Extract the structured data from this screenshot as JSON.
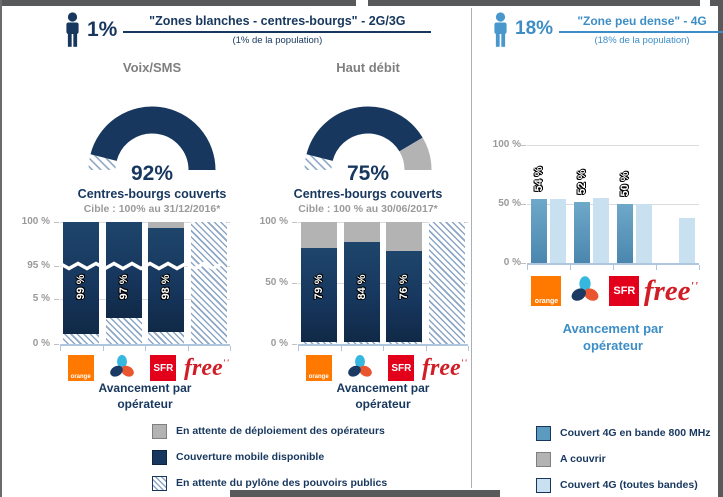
{
  "left": {
    "header": {
      "percent": "1%",
      "title": "\"Zones blanches - centres-bourgs\" - 2G/3G",
      "subtitle": "(1% de la population)"
    },
    "legend": [
      {
        "style": "gray",
        "label": "En attente de déploiement des opérateurs"
      },
      {
        "style": "navy",
        "label": "Couverture mobile disponible"
      },
      {
        "style": "hatch",
        "label": "En attente du pylône des pouvoirs publics"
      }
    ]
  },
  "right": {
    "header": {
      "percent": "18%",
      "title": "\"Zone peu dense\" - 4G",
      "subtitle": "(18% de la population)"
    },
    "legend": [
      {
        "style": "blue",
        "label": "Couvert 4G en bande 800 MHz"
      },
      {
        "style": "gray",
        "label": "A couvrir"
      },
      {
        "style": "lightblue",
        "label": "Couvert 4G (toutes bandes)"
      }
    ]
  },
  "operators": {
    "orange": "orange",
    "sfr": "SFR",
    "free": "free",
    "free_suffix": "''"
  },
  "colors": {
    "navy": "#17375e",
    "blue_accent": "#3d8ec6",
    "bar_blue_800": "#5b9bc0",
    "light_blue": "#c9e0f0",
    "gray": "#b3b3b3",
    "orange_brand": "#ff7900",
    "sfr_red": "#e2001a",
    "free_red": "#d11d25",
    "hatch_stripe": "#8ca6c6"
  },
  "chart_data": [
    {
      "type": "gauge",
      "title": "Voix/SMS",
      "value": 92,
      "value_label": "92%",
      "caption": "Centres-bourgs couverts",
      "target": "Cible : 100% au 31/12/2016*",
      "segments": [
        {
          "name": "En attente du pylône des pouvoirs publics",
          "style": "hatch",
          "value": 8
        },
        {
          "name": "Couverture mobile disponible",
          "style": "navy",
          "value": 92
        }
      ]
    },
    {
      "type": "gauge",
      "title": "Haut débit",
      "value": 75,
      "value_label": "75%",
      "caption": "Centres-bourgs couverts",
      "target": "Cible : 100 % au 30/06/2017*",
      "segments": [
        {
          "name": "En attente du pylône des pouvoirs publics",
          "style": "hatch",
          "value": 8
        },
        {
          "name": "Couverture mobile disponible",
          "style": "navy",
          "value": 75
        },
        {
          "name": "En attente de déploiement des opérateurs",
          "style": "gray",
          "value": 17
        }
      ]
    },
    {
      "type": "bar",
      "title": "Avancement par opérateur — Voix/SMS",
      "caption_l1": "Avancement par",
      "caption_l2": "opérateur",
      "categories": [
        "Orange",
        "Bouygues Telecom",
        "SFR",
        "Free"
      ],
      "operator_ids": [
        "orange",
        "bouygues",
        "sfr",
        "free"
      ],
      "values": [
        99,
        97,
        98,
        null
      ],
      "labels": [
        "99 %",
        "97 %",
        "98 %",
        ""
      ],
      "yticks": [
        {
          "label": "100 %",
          "pos": 0
        },
        {
          "label": "95 %",
          "pos": 36
        },
        {
          "label": "5 %",
          "pos": 63
        },
        {
          "label": "0 %",
          "pos": 100
        }
      ],
      "broken_axis": true,
      "break_pos": 36,
      "render_stacks": [
        [
          [
            "hatch",
            8
          ],
          [
            "navy",
            92
          ]
        ],
        [
          [
            "hatch",
            21
          ],
          [
            "navy",
            79
          ]
        ],
        [
          [
            "hatch",
            10
          ],
          [
            "navy",
            85
          ],
          [
            "gray",
            5
          ]
        ],
        [
          [
            "hatch",
            100
          ]
        ]
      ]
    },
    {
      "type": "bar",
      "title": "Avancement par opérateur — Haut débit",
      "caption_l1": "Avancement par",
      "caption_l2": "opérateur",
      "categories": [
        "Orange",
        "Bouygues Telecom",
        "SFR",
        "Free"
      ],
      "operator_ids": [
        "orange",
        "bouygues",
        "sfr",
        "free"
      ],
      "values": [
        79,
        84,
        76,
        null
      ],
      "labels": [
        "79 %",
        "84 %",
        "76 %",
        ""
      ],
      "yticks": [
        {
          "label": "100 %",
          "pos": 0
        },
        {
          "label": "50 %",
          "pos": 50
        },
        {
          "label": "0 %",
          "pos": 100
        }
      ],
      "broken_axis": false,
      "render_stacks": [
        [
          [
            "hatch",
            2
          ],
          [
            "navy",
            77
          ],
          [
            "gray",
            21
          ]
        ],
        [
          [
            "hatch",
            2
          ],
          [
            "navy",
            82
          ],
          [
            "gray",
            16
          ]
        ],
        [
          [
            "hatch",
            2
          ],
          [
            "navy",
            74
          ],
          [
            "gray",
            24
          ]
        ],
        [
          [
            "hatch",
            100
          ]
        ]
      ]
    },
    {
      "type": "bar",
      "title": "Avancement par opérateur — 4G zone peu dense",
      "caption_l1": "Avancement par",
      "caption_l2": "opérateur",
      "categories": [
        "Orange",
        "Bouygues Telecom",
        "SFR",
        "Free"
      ],
      "operator_ids": [
        "orange",
        "bouygues",
        "sfr",
        "free"
      ],
      "series": [
        {
          "name": "Couvert 4G en bande 800 MHz",
          "style": "blue",
          "values": [
            54,
            52,
            50,
            null
          ]
        },
        {
          "name": "Couvert 4G (toutes bandes)",
          "style": "lightblue",
          "values": [
            54,
            55,
            50,
            38
          ]
        }
      ],
      "labels": [
        "54 %",
        "52 %",
        "50 %",
        ""
      ],
      "yticks": [
        {
          "label": "100 %",
          "pos": 0
        },
        {
          "label": "50 %",
          "pos": 50
        },
        {
          "label": "0 %",
          "pos": 100
        }
      ]
    }
  ]
}
